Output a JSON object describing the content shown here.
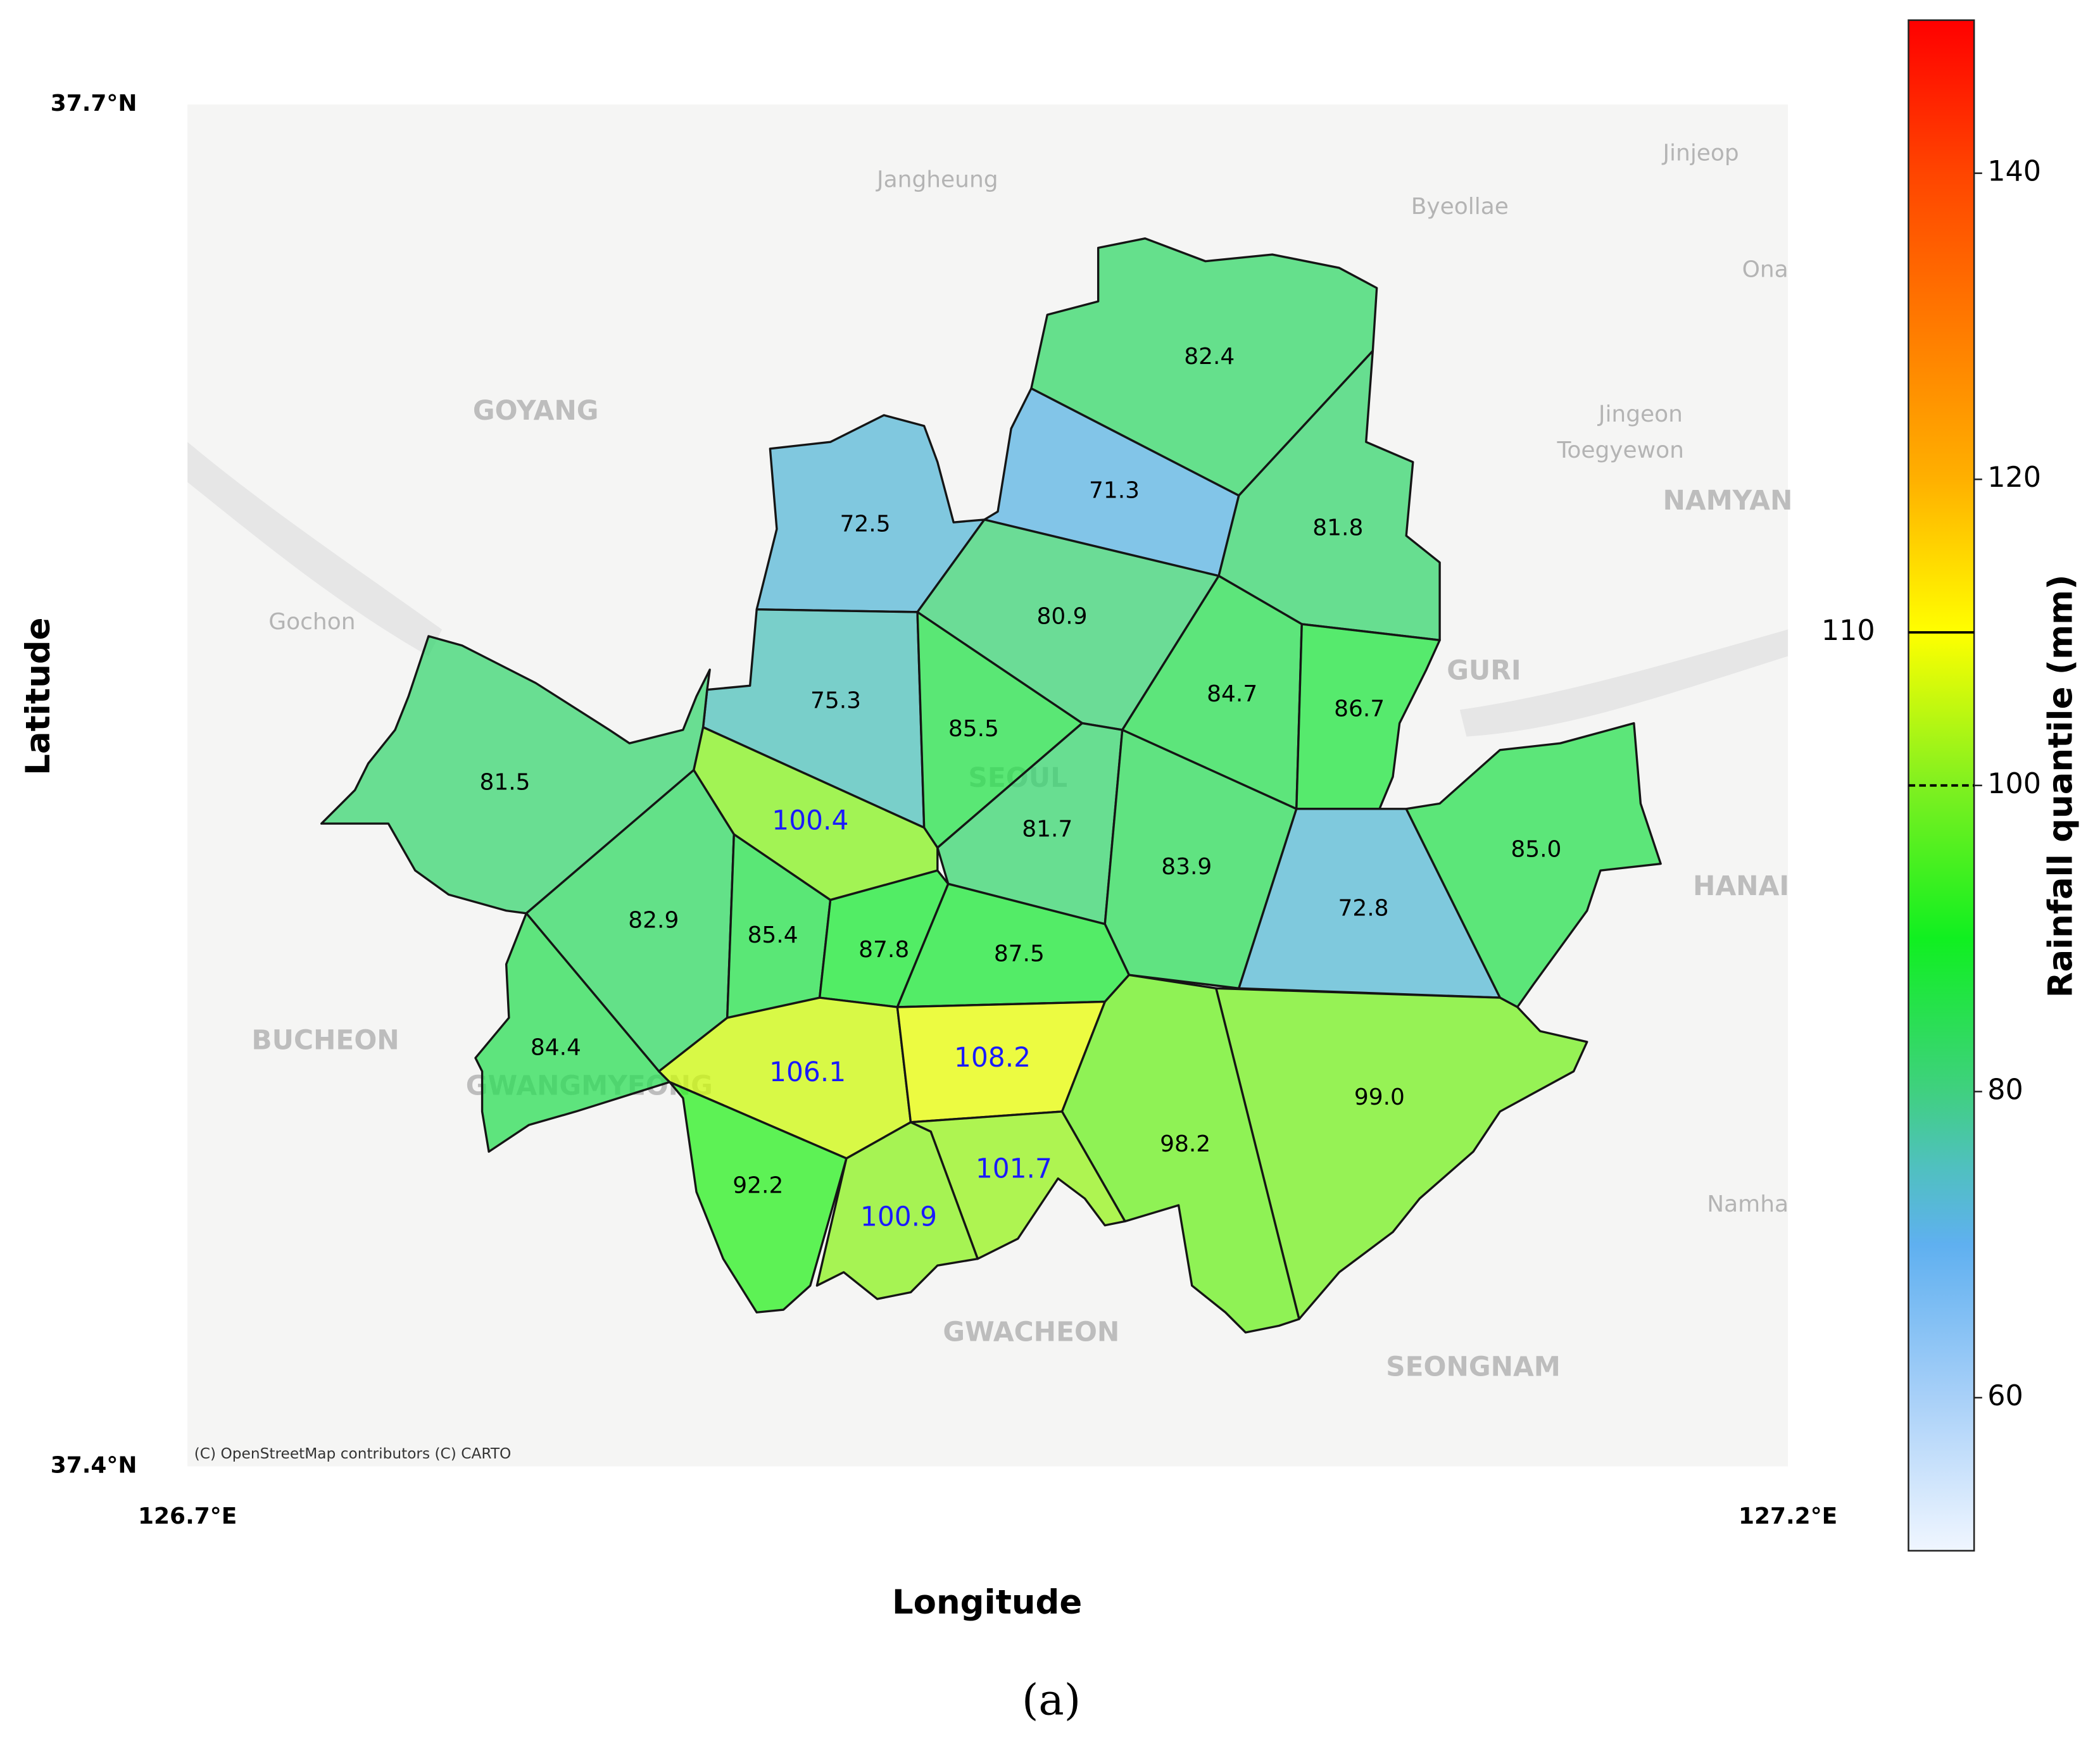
{
  "chart_data": {
    "type": "choropleth",
    "values": [
      82.4,
      71.3,
      81.8,
      72.5,
      80.9,
      75.3,
      85.5,
      84.7,
      86.7,
      81.5,
      100.4,
      81.7,
      83.9,
      72.8,
      85.0,
      82.9,
      85.4,
      87.8,
      87.5,
      84.4,
      106.1,
      108.2,
      99.0,
      98.2,
      92.2,
      101.7,
      100.9
    ],
    "value_labels": [
      "82.4",
      "71.3",
      "81.8",
      "72.5",
      "80.9",
      "75.3",
      "85.5",
      "84.7",
      "86.7",
      "81.5",
      "100.4",
      "81.7",
      "83.9",
      "72.8",
      "85.0",
      "82.9",
      "85.4",
      "87.8",
      "87.5",
      "84.4",
      "106.1",
      "108.2",
      "99.0",
      "98.2",
      "92.2",
      "101.7",
      "100.9"
    ],
    "label_color": "#000000",
    "highlight_color": "#1a1aff",
    "xlabel": "Longitude",
    "ylabel": "Latitude",
    "xlim": [
      126.7,
      127.2
    ],
    "ylim": [
      37.4,
      37.7
    ],
    "xticks": [
      {
        "value": 126.7,
        "label": "126.7°E"
      },
      {
        "value": 127.2,
        "label": "127.2°E"
      }
    ],
    "yticks": [
      {
        "value": 37.4,
        "label": "37.4°N"
      },
      {
        "value": 37.7,
        "label": "37.7°N"
      }
    ],
    "colorbar_label": "Rainfall quantile (mm)",
    "clim": [
      50,
      150
    ],
    "cticks": [
      60,
      80,
      100,
      120,
      140
    ],
    "colormap": [
      [
        50,
        "#f0f6ff"
      ],
      [
        60,
        "#a8d0f8"
      ],
      [
        70,
        "#5fb0f0"
      ],
      [
        75,
        "#50c0c0"
      ],
      [
        80,
        "#40d080"
      ],
      [
        90,
        "#10f020"
      ],
      [
        100,
        "#80f020"
      ],
      [
        110,
        "#ffff00"
      ],
      [
        120,
        "#ffb000"
      ],
      [
        140,
        "#ff4500"
      ],
      [
        150,
        "#ff0000"
      ]
    ],
    "region_opacity": 0.75,
    "reference_lines": [
      {
        "value": 110,
        "label": "110",
        "style": "solid"
      },
      {
        "value": 100,
        "style": "dashed"
      }
    ],
    "basemap_labels": [
      "Jangheung",
      "Byeollae",
      "Jinjeop",
      "Ona",
      "GOYANG",
      "Jingeon",
      "Toegyewon",
      "NAMYAN",
      "Gochon",
      "GURI",
      "SEOUL",
      "HANAI",
      "BUCHEON",
      "GWANGMYEONG",
      "Namha",
      "GWACHEON",
      "SEONGNAM"
    ],
    "attribution": "(C) OpenStreetMap contributors (C) CARTO",
    "caption": "(a)"
  }
}
